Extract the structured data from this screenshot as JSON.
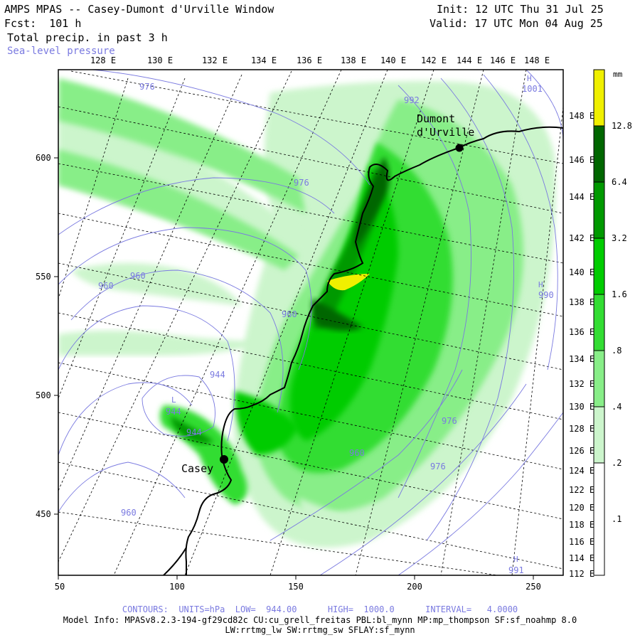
{
  "header": {
    "title": "AMPS MPAS -- Casey-Dumont d'Urville Window",
    "fcst": "Fcst:  101 h",
    "field": "Total precip. in past 3 h",
    "contour_field": "Sea-level pressure",
    "init": "Init: 12 UTC Thu 31 Jul 25",
    "valid": "Valid: 17 UTC Mon 04 Aug 25"
  },
  "top_lon_labels": [
    "128 E",
    "130 E",
    "132 E",
    "134 E",
    "136 E",
    "138 E",
    "140 E",
    "142 E",
    "144 E",
    "146 E",
    "148 E"
  ],
  "right_lon_labels": [
    "148 E",
    "146 E",
    "144 E",
    "142 E",
    "140 E",
    "138 E",
    "136 E",
    "134 E",
    "132 E",
    "130 E",
    "128 E",
    "126 E",
    "124 E",
    "122 E",
    "120 E",
    "118 E",
    "116 E",
    "114 E",
    "112 E"
  ],
  "x_axis": {
    "ticks": [
      "50",
      "100",
      "150",
      "200",
      "250"
    ],
    "range": [
      50,
      262
    ]
  },
  "y_axis": {
    "ticks": [
      "600",
      "550",
      "500",
      "450"
    ],
    "range": [
      423,
      637
    ]
  },
  "places": [
    {
      "name": "Dumont\nd'Urville",
      "x": 218,
      "y": 604
    },
    {
      "name": "Casey",
      "x": 120,
      "y": 473
    }
  ],
  "pressure_labels": [
    "976",
    "992",
    "1001",
    "H",
    "976",
    "960",
    "960",
    "990",
    "960",
    "944",
    "L",
    "944",
    "944",
    "976",
    "960",
    "976",
    "960",
    "H",
    "991",
    "H"
  ],
  "colorbar": {
    "unit": "mm",
    "levels": [
      "12.8",
      "6.4",
      "3.2",
      "1.6",
      ".8",
      ".4",
      ".2",
      ".1"
    ],
    "colors": [
      "#f0f000",
      "#006600",
      "#009900",
      "#00cc00",
      "#33dd33",
      "#88ee88",
      "#ccf5cc",
      "#ffffff"
    ]
  },
  "footer": {
    "contours": "CONTOURS:  UNITS=hPa  LOW=  944.00      HIGH=  1000.0      INTERVAL=   4.0000",
    "model_info": "Model Info: MPASv8.2.3-194-gf29cd82c CU:cu_grell_freitas PBL:bl_mynn MP:mp_thompson SF:sf_noahmp 8.0",
    "model_info2": "LW:rrtmg_lw SW:rrtmg_sw SFLAY:sf_mynn"
  }
}
